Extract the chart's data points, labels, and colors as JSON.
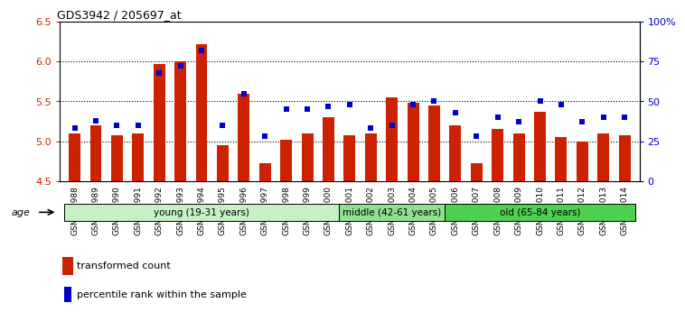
{
  "title": "GDS3942 / 205697_at",
  "samples": [
    "GSM812988",
    "GSM812989",
    "GSM812990",
    "GSM812991",
    "GSM812992",
    "GSM812993",
    "GSM812994",
    "GSM812995",
    "GSM812996",
    "GSM812997",
    "GSM812998",
    "GSM812999",
    "GSM813000",
    "GSM813001",
    "GSM813002",
    "GSM813003",
    "GSM813004",
    "GSM813005",
    "GSM813006",
    "GSM813007",
    "GSM813008",
    "GSM813009",
    "GSM813010",
    "GSM813011",
    "GSM813012",
    "GSM813013",
    "GSM813014"
  ],
  "bar_values": [
    5.1,
    5.2,
    5.07,
    5.1,
    5.97,
    6.0,
    6.22,
    4.95,
    5.6,
    4.73,
    5.02,
    5.1,
    5.3,
    5.08,
    5.1,
    5.55,
    5.48,
    5.45,
    5.2,
    4.73,
    5.15,
    5.1,
    5.37,
    5.05,
    5.0,
    5.1,
    5.08
  ],
  "dot_values": [
    33,
    38,
    35,
    35,
    68,
    72,
    82,
    35,
    55,
    28,
    45,
    45,
    47,
    48,
    33,
    35,
    48,
    50,
    43,
    28,
    40,
    37,
    50,
    48,
    37,
    40,
    40
  ],
  "ylim_left": [
    4.5,
    6.5
  ],
  "ylim_right": [
    0,
    100
  ],
  "yticks_left": [
    4.5,
    5.0,
    5.5,
    6.0,
    6.5
  ],
  "yticks_right": [
    0,
    25,
    50,
    75,
    100
  ],
  "groups": [
    {
      "label": "young (19-31 years)",
      "start": 0,
      "end": 13,
      "color": "#c8f0c8"
    },
    {
      "label": "middle (42-61 years)",
      "start": 13,
      "end": 18,
      "color": "#90e090"
    },
    {
      "label": "old (65-84 years)",
      "start": 18,
      "end": 27,
      "color": "#50d050"
    }
  ],
  "bar_color": "#cc2200",
  "dot_color": "#0000cc",
  "bar_bottom": 4.5,
  "legend_bar_label": "transformed count",
  "legend_dot_label": "percentile rank within the sample",
  "age_label": "age",
  "background_plot": "#ffffff",
  "background_outer": "#ffffff",
  "grid_color": "#000000",
  "spine_color": "#000000"
}
